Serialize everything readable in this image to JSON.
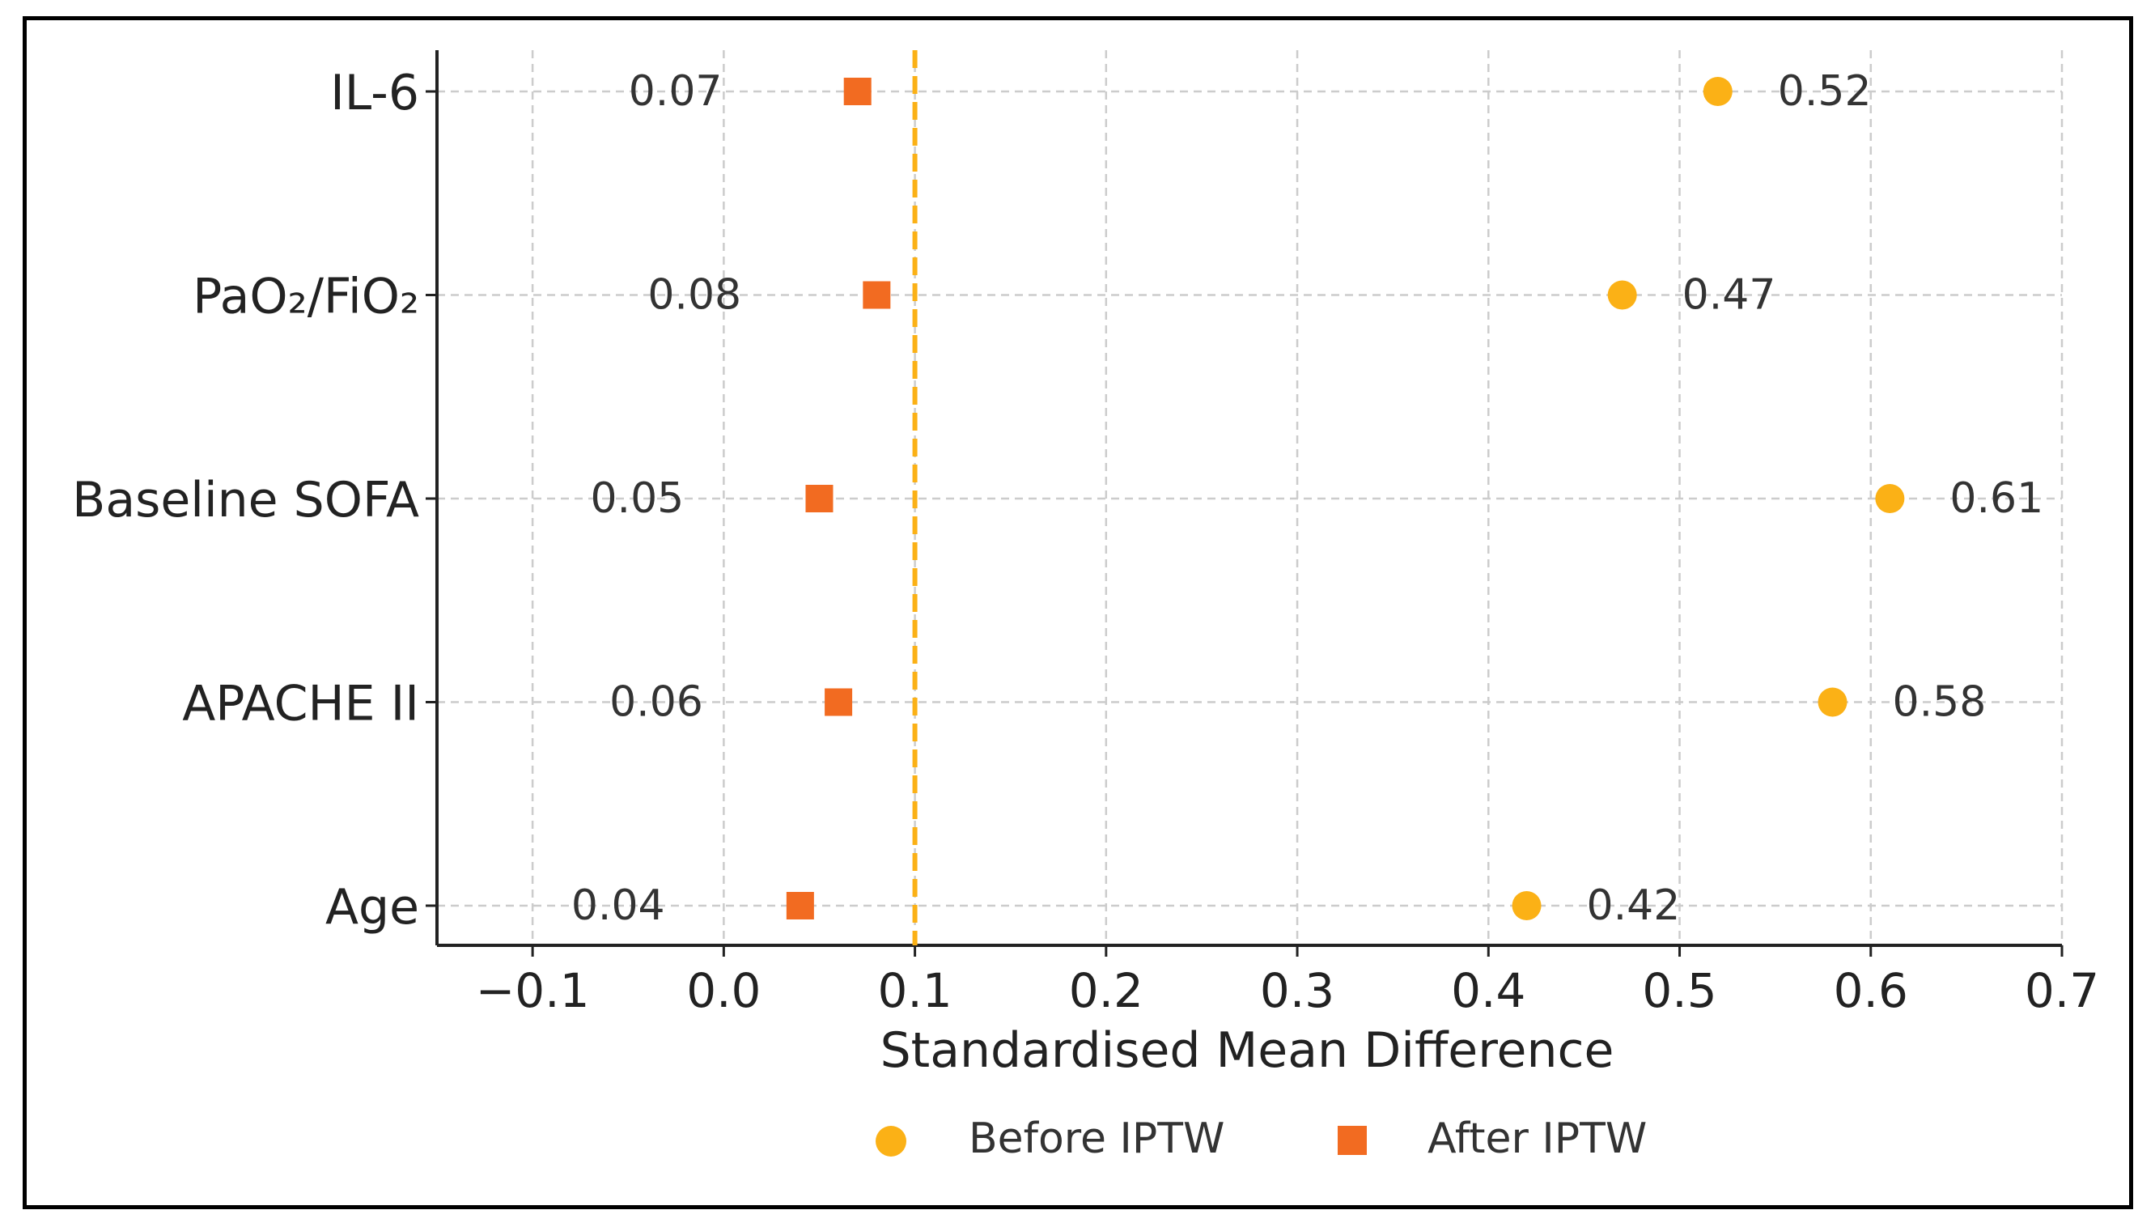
{
  "chart_data": {
    "type": "scatter",
    "orientation": "horizontal",
    "title": "",
    "xlabel": "Standardised Mean Difference",
    "ylabel": "",
    "xlim": [
      -0.15,
      0.7
    ],
    "xticks": [
      -0.1,
      0.0,
      0.1,
      0.2,
      0.3,
      0.4,
      0.5,
      0.6,
      0.7
    ],
    "xtick_labels": [
      "−0.1",
      "0.0",
      "0.1",
      "0.2",
      "0.3",
      "0.4",
      "0.5",
      "0.6",
      "0.7"
    ],
    "grid": true,
    "categories": [
      "IL-6",
      "PaO₂/FiO₂",
      "Baseline SOFA",
      "APACHE II",
      "Age"
    ],
    "series": [
      {
        "name": "Before IPTW",
        "marker": "circle",
        "color": "#fbb116",
        "values": [
          0.52,
          0.47,
          0.61,
          0.58,
          0.42
        ],
        "labels": [
          "0.52",
          "0.47",
          "0.61",
          "0.58",
          "0.42"
        ]
      },
      {
        "name": "After IPTW",
        "marker": "square",
        "color": "#f26b21",
        "values": [
          0.07,
          0.08,
          0.05,
          0.06,
          0.04
        ],
        "labels": [
          "0.07",
          "0.08",
          "0.05",
          "0.06",
          "0.04"
        ]
      }
    ],
    "reference_line": {
      "x": 0.1,
      "style": "dashed",
      "color": "#fbb116"
    },
    "legend": {
      "position": "bottom-center",
      "entries": [
        "Before IPTW",
        "After IPTW"
      ]
    }
  }
}
